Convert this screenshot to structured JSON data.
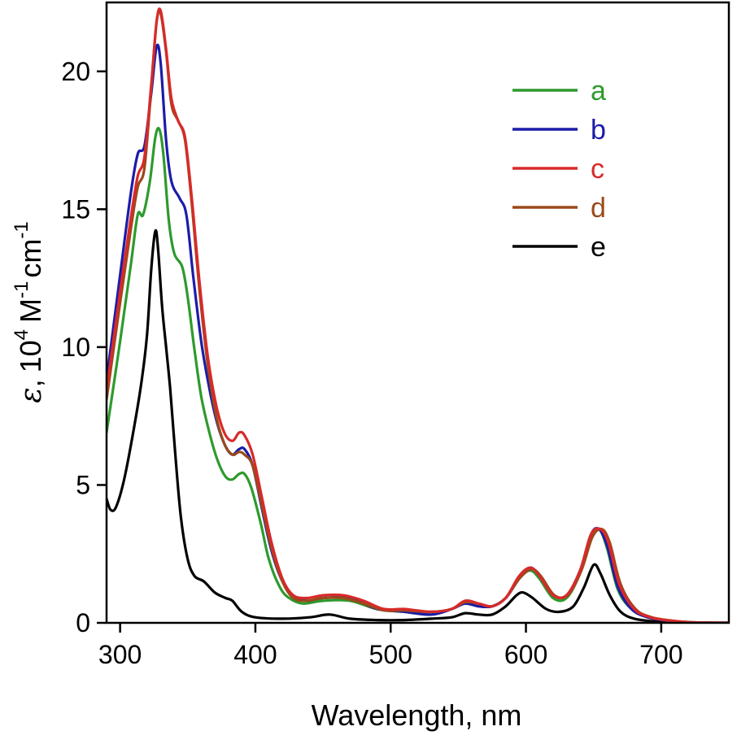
{
  "chart_data": {
    "type": "line",
    "title": "",
    "xlabel": "Wavelength, nm",
    "ylabel": {
      "symbol": "ε",
      "comma": ",",
      "base": "10",
      "exp": "4",
      "unit1": "M",
      "exp1": "-1",
      "unit2": "cm",
      "exp2": "-1"
    },
    "xlim": [
      290,
      750
    ],
    "ylim": [
      0,
      22.5
    ],
    "xticks": [
      300,
      400,
      500,
      600,
      700
    ],
    "yticks": [
      0,
      5,
      10,
      15,
      20
    ],
    "grid": false,
    "legend_position": "top-right",
    "series": [
      {
        "name": "a",
        "color": "#2e9a2e",
        "points": [
          [
            290,
            6.9
          ],
          [
            300,
            10.2
          ],
          [
            308,
            13.0
          ],
          [
            313,
            14.8
          ],
          [
            317,
            14.8
          ],
          [
            322,
            16.0
          ],
          [
            326,
            17.6
          ],
          [
            329,
            17.9
          ],
          [
            332,
            17.0
          ],
          [
            336,
            14.6
          ],
          [
            340,
            13.4
          ],
          [
            346,
            12.9
          ],
          [
            350,
            11.8
          ],
          [
            355,
            9.9
          ],
          [
            360,
            8.2
          ],
          [
            366,
            6.9
          ],
          [
            372,
            5.9
          ],
          [
            378,
            5.3
          ],
          [
            383,
            5.2
          ],
          [
            388,
            5.4
          ],
          [
            392,
            5.4
          ],
          [
            397,
            4.9
          ],
          [
            404,
            3.6
          ],
          [
            410,
            2.3
          ],
          [
            418,
            1.3
          ],
          [
            425,
            0.9
          ],
          [
            435,
            0.7
          ],
          [
            450,
            0.8
          ],
          [
            470,
            0.8
          ],
          [
            490,
            0.5
          ],
          [
            510,
            0.4
          ],
          [
            530,
            0.3
          ],
          [
            545,
            0.5
          ],
          [
            555,
            0.7
          ],
          [
            565,
            0.6
          ],
          [
            575,
            0.6
          ],
          [
            585,
            0.9
          ],
          [
            595,
            1.6
          ],
          [
            603,
            1.9
          ],
          [
            610,
            1.6
          ],
          [
            620,
            0.9
          ],
          [
            630,
            0.9
          ],
          [
            640,
            1.8
          ],
          [
            648,
            3.1
          ],
          [
            654,
            3.4
          ],
          [
            660,
            2.7
          ],
          [
            668,
            1.2
          ],
          [
            678,
            0.5
          ],
          [
            690,
            0.2
          ],
          [
            705,
            0.08
          ],
          [
            720,
            0.02
          ],
          [
            750,
            0
          ]
        ]
      },
      {
        "name": "b",
        "color": "#1c1ca8",
        "points": [
          [
            290,
            8.8
          ],
          [
            300,
            12.6
          ],
          [
            308,
            15.6
          ],
          [
            313,
            17.0
          ],
          [
            318,
            17.3
          ],
          [
            323,
            19.2
          ],
          [
            327,
            20.9
          ],
          [
            330,
            20.3
          ],
          [
            334,
            17.5
          ],
          [
            338,
            16.0
          ],
          [
            344,
            15.4
          ],
          [
            349,
            14.8
          ],
          [
            354,
            12.6
          ],
          [
            360,
            10.2
          ],
          [
            366,
            8.5
          ],
          [
            372,
            7.2
          ],
          [
            378,
            6.4
          ],
          [
            383,
            6.1
          ],
          [
            388,
            6.3
          ],
          [
            392,
            6.3
          ],
          [
            398,
            5.7
          ],
          [
            405,
            4.1
          ],
          [
            412,
            2.6
          ],
          [
            420,
            1.5
          ],
          [
            428,
            1.0
          ],
          [
            438,
            0.8
          ],
          [
            450,
            0.9
          ],
          [
            470,
            0.9
          ],
          [
            490,
            0.5
          ],
          [
            510,
            0.4
          ],
          [
            530,
            0.3
          ],
          [
            545,
            0.5
          ],
          [
            555,
            0.7
          ],
          [
            565,
            0.6
          ],
          [
            575,
            0.6
          ],
          [
            585,
            0.9
          ],
          [
            595,
            1.6
          ],
          [
            603,
            2.0
          ],
          [
            610,
            1.7
          ],
          [
            620,
            1.0
          ],
          [
            630,
            1.0
          ],
          [
            640,
            1.9
          ],
          [
            648,
            3.2
          ],
          [
            654,
            3.4
          ],
          [
            660,
            2.8
          ],
          [
            668,
            1.3
          ],
          [
            678,
            0.5
          ],
          [
            690,
            0.2
          ],
          [
            705,
            0.08
          ],
          [
            720,
            0.02
          ],
          [
            750,
            0
          ]
        ]
      },
      {
        "name": "c",
        "color": "#d82a2a",
        "points": [
          [
            290,
            8.4
          ],
          [
            300,
            12.0
          ],
          [
            308,
            14.7
          ],
          [
            313,
            16.2
          ],
          [
            318,
            16.9
          ],
          [
            323,
            19.5
          ],
          [
            327,
            21.8
          ],
          [
            330,
            22.2
          ],
          [
            334,
            20.8
          ],
          [
            338,
            19.0
          ],
          [
            343,
            18.2
          ],
          [
            348,
            17.6
          ],
          [
            353,
            15.4
          ],
          [
            359,
            12.2
          ],
          [
            365,
            9.6
          ],
          [
            371,
            7.9
          ],
          [
            377,
            6.9
          ],
          [
            383,
            6.6
          ],
          [
            388,
            6.9
          ],
          [
            392,
            6.8
          ],
          [
            398,
            6.1
          ],
          [
            405,
            4.5
          ],
          [
            412,
            2.9
          ],
          [
            420,
            1.6
          ],
          [
            428,
            1.0
          ],
          [
            438,
            0.9
          ],
          [
            450,
            1.0
          ],
          [
            465,
            1.0
          ],
          [
            480,
            0.8
          ],
          [
            495,
            0.5
          ],
          [
            510,
            0.5
          ],
          [
            530,
            0.4
          ],
          [
            545,
            0.5
          ],
          [
            555,
            0.8
          ],
          [
            565,
            0.7
          ],
          [
            575,
            0.6
          ],
          [
            585,
            0.9
          ],
          [
            595,
            1.7
          ],
          [
            603,
            2.0
          ],
          [
            610,
            1.7
          ],
          [
            620,
            1.0
          ],
          [
            630,
            1.0
          ],
          [
            640,
            1.9
          ],
          [
            648,
            3.2
          ],
          [
            655,
            3.4
          ],
          [
            661,
            2.9
          ],
          [
            669,
            1.4
          ],
          [
            680,
            0.5
          ],
          [
            692,
            0.2
          ],
          [
            707,
            0.08
          ],
          [
            722,
            0.02
          ],
          [
            750,
            0
          ]
        ]
      },
      {
        "name": "d",
        "color": "#9a4a1a",
        "points": [
          [
            290,
            8.1
          ],
          [
            300,
            11.6
          ],
          [
            308,
            14.3
          ],
          [
            313,
            15.8
          ],
          [
            318,
            16.5
          ],
          [
            323,
            19.4
          ],
          [
            327,
            21.8
          ],
          [
            330,
            22.1
          ],
          [
            334,
            20.7
          ],
          [
            338,
            18.8
          ],
          [
            343,
            18.2
          ],
          [
            348,
            17.5
          ],
          [
            353,
            15.2
          ],
          [
            359,
            11.9
          ],
          [
            365,
            9.3
          ],
          [
            371,
            7.5
          ],
          [
            377,
            6.5
          ],
          [
            383,
            6.1
          ],
          [
            388,
            6.2
          ],
          [
            392,
            6.1
          ],
          [
            398,
            5.7
          ],
          [
            405,
            4.2
          ],
          [
            412,
            2.7
          ],
          [
            420,
            1.5
          ],
          [
            428,
            0.9
          ],
          [
            438,
            0.8
          ],
          [
            450,
            0.9
          ],
          [
            465,
            0.9
          ],
          [
            480,
            0.7
          ],
          [
            495,
            0.45
          ],
          [
            510,
            0.45
          ],
          [
            530,
            0.4
          ],
          [
            545,
            0.5
          ],
          [
            555,
            0.75
          ],
          [
            565,
            0.7
          ],
          [
            575,
            0.6
          ],
          [
            585,
            0.9
          ],
          [
            595,
            1.6
          ],
          [
            604,
            1.95
          ],
          [
            611,
            1.7
          ],
          [
            621,
            1.0
          ],
          [
            631,
            1.0
          ],
          [
            641,
            1.9
          ],
          [
            649,
            3.1
          ],
          [
            656,
            3.4
          ],
          [
            662,
            2.9
          ],
          [
            670,
            1.4
          ],
          [
            681,
            0.5
          ],
          [
            693,
            0.2
          ],
          [
            708,
            0.08
          ],
          [
            723,
            0.02
          ],
          [
            750,
            0
          ]
        ]
      },
      {
        "name": "e",
        "color": "#000000",
        "points": [
          [
            290,
            4.5
          ],
          [
            293,
            4.1
          ],
          [
            297,
            4.2
          ],
          [
            303,
            5.2
          ],
          [
            310,
            7.0
          ],
          [
            316,
            8.8
          ],
          [
            320,
            10.5
          ],
          [
            323,
            12.8
          ],
          [
            326,
            14.2
          ],
          [
            328,
            13.6
          ],
          [
            331,
            11.5
          ],
          [
            334,
            10.0
          ],
          [
            337,
            8.5
          ],
          [
            341,
            6.0
          ],
          [
            345,
            3.8
          ],
          [
            350,
            2.3
          ],
          [
            355,
            1.7
          ],
          [
            362,
            1.5
          ],
          [
            370,
            1.1
          ],
          [
            378,
            0.9
          ],
          [
            383,
            0.8
          ],
          [
            390,
            0.4
          ],
          [
            400,
            0.2
          ],
          [
            420,
            0.15
          ],
          [
            440,
            0.2
          ],
          [
            455,
            0.3
          ],
          [
            470,
            0.15
          ],
          [
            490,
            0.1
          ],
          [
            510,
            0.1
          ],
          [
            530,
            0.15
          ],
          [
            545,
            0.2
          ],
          [
            555,
            0.35
          ],
          [
            565,
            0.3
          ],
          [
            575,
            0.3
          ],
          [
            585,
            0.6
          ],
          [
            593,
            1.0
          ],
          [
            598,
            1.1
          ],
          [
            605,
            0.9
          ],
          [
            615,
            0.5
          ],
          [
            625,
            0.4
          ],
          [
            635,
            0.6
          ],
          [
            643,
            1.3
          ],
          [
            650,
            2.1
          ],
          [
            655,
            1.8
          ],
          [
            662,
            1.0
          ],
          [
            670,
            0.4
          ],
          [
            680,
            0.15
          ],
          [
            695,
            0.05
          ],
          [
            710,
            0.01
          ],
          [
            750,
            0
          ]
        ]
      }
    ]
  }
}
